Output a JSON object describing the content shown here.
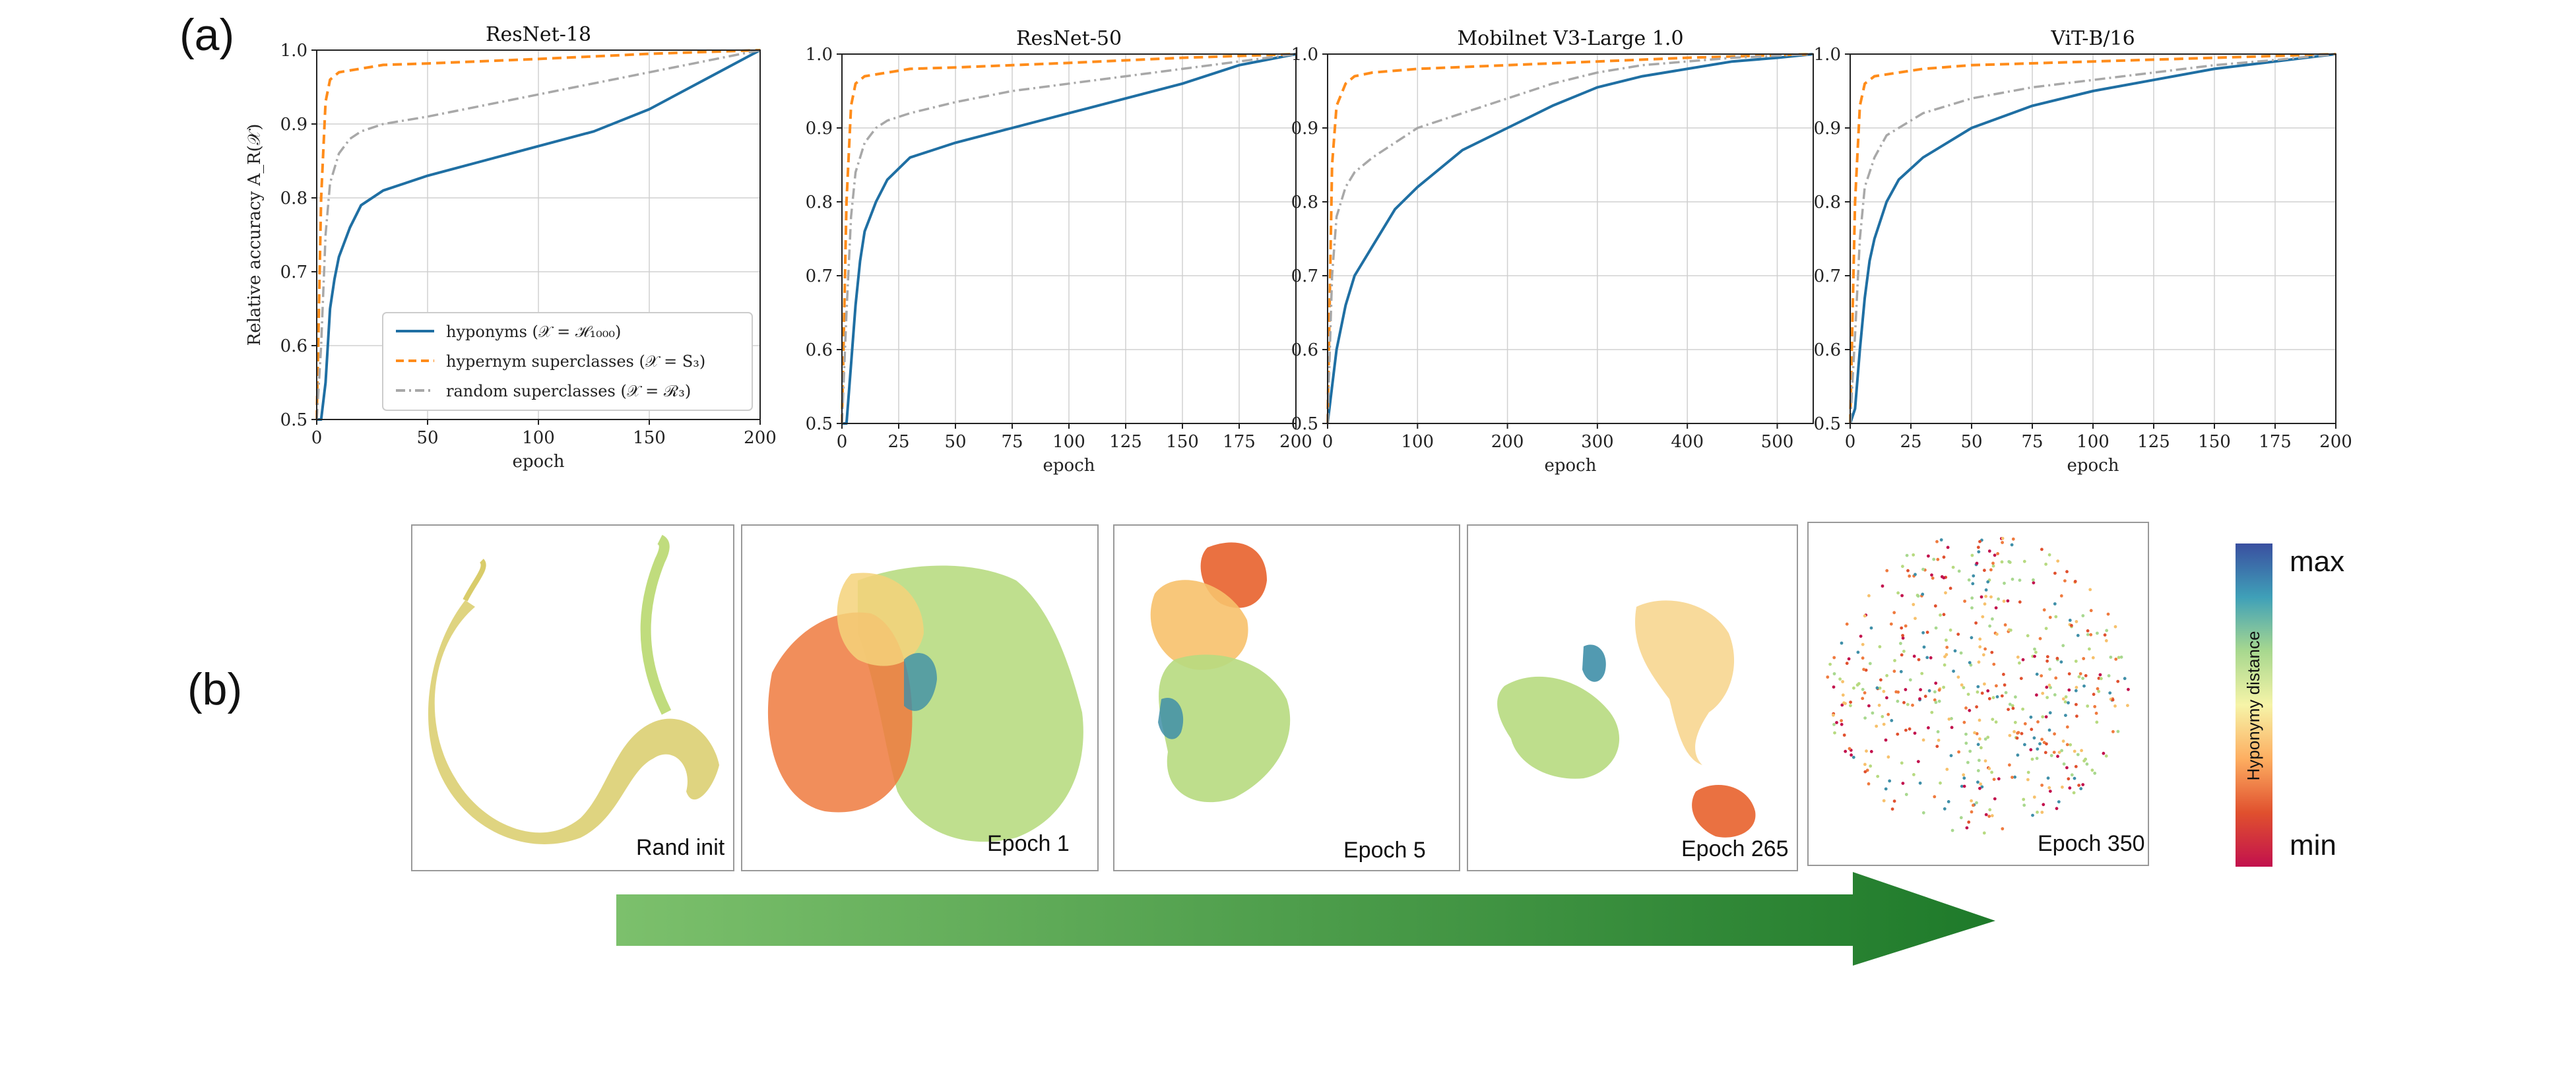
{
  "panel_labels": {
    "a": "(a)",
    "b": "(b)"
  },
  "colors": {
    "hyponyms": "#1f6fa3",
    "hypernym": "#ff8c1a",
    "random": "#a8a8a8",
    "grid": "#d0d0d0",
    "arrow_start": "#7cc06c",
    "arrow_end": "#1e7a2a"
  },
  "legend": {
    "hyponyms": "hyponyms (𝒳 = ℋ₁₀₀₀)",
    "hypernym": "hypernym superclasses (𝒳 = S₃)",
    "random": "random superclasses (𝒳 = ℛ₃)"
  },
  "chart_data": [
    {
      "type": "line",
      "title": "ResNet-18",
      "xlabel": "epoch",
      "ylabel": "Relative accuracy A_R(𝒳)",
      "xlim": [
        0,
        200
      ],
      "ylim": [
        0.5,
        1.0
      ],
      "xticks": [
        0,
        50,
        100,
        150,
        200
      ],
      "yticks": [
        0.5,
        0.6,
        0.7,
        0.8,
        0.9,
        1.0
      ],
      "grid": true,
      "legend_position": "lower-right",
      "series": [
        {
          "name": "hyponyms (𝒳 = ℋ₁₀₀₀)",
          "style": "solid",
          "x": [
            0,
            2,
            4,
            6,
            8,
            10,
            15,
            20,
            30,
            40,
            50,
            75,
            100,
            125,
            150,
            175,
            200
          ],
          "y": [
            0.5,
            0.5,
            0.55,
            0.65,
            0.69,
            0.72,
            0.76,
            0.79,
            0.81,
            0.82,
            0.83,
            0.85,
            0.87,
            0.89,
            0.92,
            0.96,
            1.0
          ]
        },
        {
          "name": "hypernym superclasses (𝒳 = S₃)",
          "style": "dashed",
          "x": [
            0,
            2,
            4,
            6,
            10,
            20,
            30,
            50,
            100,
            150,
            200
          ],
          "y": [
            0.5,
            0.8,
            0.93,
            0.96,
            0.97,
            0.975,
            0.98,
            0.982,
            0.988,
            0.995,
            1.0
          ]
        },
        {
          "name": "random superclasses (𝒳 = ℛ₃)",
          "style": "dashdot",
          "x": [
            0,
            2,
            4,
            6,
            10,
            15,
            20,
            30,
            50,
            75,
            100,
            125,
            150,
            175,
            200
          ],
          "y": [
            0.5,
            0.6,
            0.75,
            0.82,
            0.86,
            0.88,
            0.89,
            0.9,
            0.91,
            0.925,
            0.94,
            0.955,
            0.97,
            0.985,
            1.0
          ]
        }
      ]
    },
    {
      "type": "line",
      "title": "ResNet-50",
      "xlabel": "epoch",
      "ylabel": "",
      "xlim": [
        0,
        200
      ],
      "ylim": [
        0.5,
        1.0
      ],
      "xticks": [
        0,
        25,
        50,
        75,
        100,
        125,
        150,
        175,
        200
      ],
      "yticks": [
        0.5,
        0.6,
        0.7,
        0.8,
        0.9,
        1.0
      ],
      "grid": true,
      "series": [
        {
          "name": "hyponyms",
          "style": "solid",
          "x": [
            0,
            2,
            4,
            6,
            8,
            10,
            15,
            20,
            30,
            40,
            50,
            75,
            100,
            125,
            150,
            175,
            200
          ],
          "y": [
            0.5,
            0.5,
            0.58,
            0.66,
            0.72,
            0.76,
            0.8,
            0.83,
            0.86,
            0.87,
            0.88,
            0.9,
            0.92,
            0.94,
            0.96,
            0.985,
            1.0
          ]
        },
        {
          "name": "hypernym superclasses",
          "style": "dashed",
          "x": [
            0,
            2,
            4,
            6,
            10,
            20,
            30,
            50,
            100,
            150,
            200
          ],
          "y": [
            0.5,
            0.8,
            0.93,
            0.96,
            0.97,
            0.975,
            0.98,
            0.982,
            0.988,
            0.995,
            1.0
          ]
        },
        {
          "name": "random superclasses",
          "style": "dashdot",
          "x": [
            0,
            2,
            4,
            6,
            10,
            15,
            20,
            30,
            50,
            75,
            100,
            125,
            150,
            175,
            200
          ],
          "y": [
            0.5,
            0.65,
            0.78,
            0.84,
            0.88,
            0.9,
            0.91,
            0.92,
            0.935,
            0.95,
            0.96,
            0.97,
            0.98,
            0.99,
            1.0
          ]
        }
      ]
    },
    {
      "type": "line",
      "title": "Mobilnet V3-Large 1.0",
      "xlabel": "epoch",
      "ylabel": "",
      "xlim": [
        0,
        540
      ],
      "ylim": [
        0.5,
        1.0
      ],
      "xticks": [
        0,
        100,
        200,
        300,
        400,
        500
      ],
      "yticks": [
        0.5,
        0.6,
        0.7,
        0.8,
        0.9,
        1.0
      ],
      "grid": true,
      "series": [
        {
          "name": "hyponyms",
          "style": "solid",
          "x": [
            0,
            5,
            10,
            20,
            30,
            50,
            75,
            100,
            150,
            200,
            250,
            300,
            350,
            400,
            450,
            500,
            540
          ],
          "y": [
            0.5,
            0.55,
            0.6,
            0.66,
            0.7,
            0.74,
            0.79,
            0.82,
            0.87,
            0.9,
            0.93,
            0.955,
            0.97,
            0.98,
            0.99,
            0.995,
            1.0
          ]
        },
        {
          "name": "hypernym superclasses",
          "style": "dashed",
          "x": [
            0,
            5,
            10,
            20,
            30,
            50,
            100,
            200,
            300,
            400,
            540
          ],
          "y": [
            0.5,
            0.85,
            0.93,
            0.96,
            0.97,
            0.975,
            0.98,
            0.985,
            0.99,
            0.995,
            1.0
          ]
        },
        {
          "name": "random superclasses",
          "style": "dashdot",
          "x": [
            0,
            5,
            10,
            20,
            30,
            50,
            100,
            150,
            200,
            250,
            300,
            350,
            400,
            450,
            540
          ],
          "y": [
            0.5,
            0.7,
            0.78,
            0.82,
            0.84,
            0.86,
            0.9,
            0.92,
            0.94,
            0.96,
            0.975,
            0.985,
            0.99,
            0.995,
            1.0
          ]
        }
      ]
    },
    {
      "type": "line",
      "title": "ViT-B/16",
      "xlabel": "epoch",
      "ylabel": "",
      "xlim": [
        0,
        200
      ],
      "ylim": [
        0.5,
        1.0
      ],
      "xticks": [
        0,
        25,
        50,
        75,
        100,
        125,
        150,
        175,
        200
      ],
      "yticks": [
        0.5,
        0.6,
        0.7,
        0.8,
        0.9,
        1.0
      ],
      "grid": true,
      "series": [
        {
          "name": "hyponyms",
          "style": "solid",
          "x": [
            0,
            2,
            4,
            6,
            8,
            10,
            15,
            20,
            30,
            40,
            50,
            75,
            100,
            125,
            150,
            175,
            200
          ],
          "y": [
            0.5,
            0.52,
            0.6,
            0.67,
            0.72,
            0.75,
            0.8,
            0.83,
            0.86,
            0.88,
            0.9,
            0.93,
            0.95,
            0.965,
            0.98,
            0.99,
            1.0
          ]
        },
        {
          "name": "hypernym superclasses",
          "style": "dashed",
          "x": [
            0,
            2,
            4,
            6,
            10,
            20,
            30,
            50,
            100,
            150,
            200
          ],
          "y": [
            0.5,
            0.8,
            0.93,
            0.96,
            0.97,
            0.975,
            0.98,
            0.985,
            0.99,
            0.995,
            1.0
          ]
        },
        {
          "name": "random superclasses",
          "style": "dashdot",
          "x": [
            0,
            2,
            4,
            6,
            10,
            15,
            20,
            30,
            50,
            75,
            100,
            125,
            150,
            175,
            200
          ],
          "y": [
            0.5,
            0.62,
            0.75,
            0.82,
            0.86,
            0.89,
            0.9,
            0.92,
            0.94,
            0.955,
            0.965,
            0.975,
            0.985,
            0.992,
            1.0
          ]
        }
      ]
    }
  ],
  "embeddings": [
    {
      "label": "Rand init"
    },
    {
      "label": "Epoch 1"
    },
    {
      "label": "Epoch 5"
    },
    {
      "label": "Epoch 265"
    },
    {
      "label": "Epoch 350"
    }
  ],
  "colorbar": {
    "title": "Hyponymy distance",
    "max_label": "max",
    "min_label": "min",
    "gradient": [
      "#3a4fa0",
      "#3fa0b8",
      "#a8d88f",
      "#f6f4a8",
      "#fdae61",
      "#e0502e",
      "#c2114d"
    ]
  }
}
